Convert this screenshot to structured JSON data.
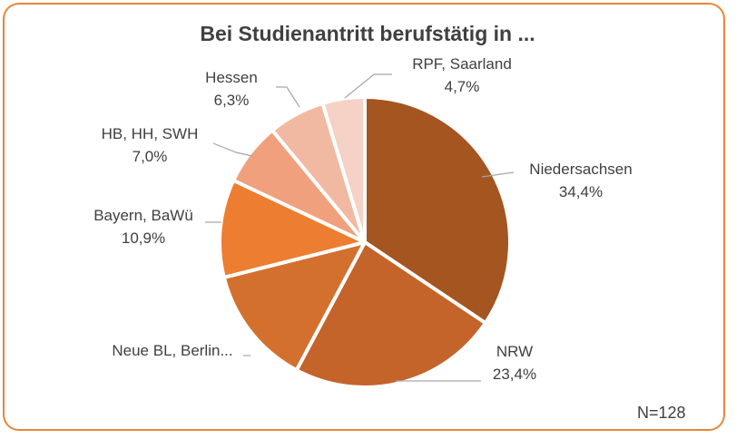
{
  "chart_data": {
    "type": "pie",
    "title": "Bei Studienantritt berufstätig in  ...",
    "note": "N=128",
    "slices": [
      {
        "label": "Niedersachsen",
        "value_label": "34,4%",
        "value": 34.4,
        "color": "#a55520"
      },
      {
        "label": "NRW",
        "value_label": "23,4%",
        "value": 23.4,
        "color": "#c4642a"
      },
      {
        "label": "Neue BL, Berlin...",
        "value_label": "",
        "value": 13.3,
        "color": "#d4702e"
      },
      {
        "label": "Bayern, BaWü",
        "value_label": "10,9%",
        "value": 10.9,
        "color": "#ed7d31"
      },
      {
        "label": "HB, HH, SWH",
        "value_label": "7,0%",
        "value": 7.0,
        "color": "#f0a07c"
      },
      {
        "label": "Hessen",
        "value_label": "6,3%",
        "value": 6.3,
        "color": "#f2b9a2"
      },
      {
        "label": "RPF, Saarland",
        "value_label": "4,7%",
        "value": 4.7,
        "color": "#f5d1c6"
      }
    ]
  }
}
